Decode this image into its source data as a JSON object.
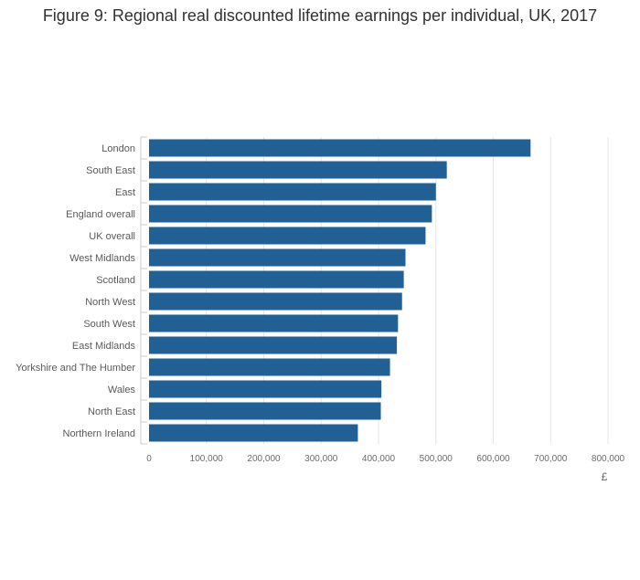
{
  "chart_data": {
    "type": "bar",
    "orientation": "horizontal",
    "title": "Figure 9: Regional real discounted lifetime earnings per individual, UK, 2017",
    "xlabel": "£",
    "ylabel": "",
    "categories": [
      "London",
      "South East",
      "East",
      "England overall",
      "UK overall",
      "West Midlands",
      "Scotland",
      "North West",
      "South West",
      "East Midlands",
      "Yorkshire and The Humber",
      "Wales",
      "North East",
      "Northern Ireland"
    ],
    "values": [
      665000,
      519000,
      500000,
      493000,
      482000,
      447000,
      444000,
      441000,
      434000,
      432000,
      420000,
      405000,
      404000,
      364000
    ],
    "xlim": [
      0,
      800000
    ],
    "xticks": [
      0,
      100000,
      200000,
      300000,
      400000,
      500000,
      600000,
      700000,
      800000
    ],
    "xtick_labels": [
      "0",
      "100,000",
      "200,000",
      "300,000",
      "400,000",
      "500,000",
      "600,000",
      "700,000",
      "800,000"
    ],
    "bar_color": "#206095",
    "grid": true,
    "legend": "none"
  }
}
